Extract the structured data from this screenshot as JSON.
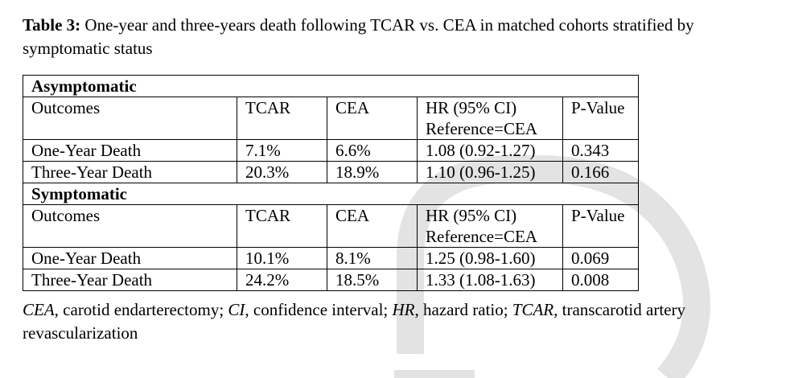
{
  "caption": {
    "label": "Table 3:",
    "text": " One-year and three-years death following TCAR vs. CEA in matched cohorts stratified by symptomatic status"
  },
  "table": {
    "sections": [
      {
        "title": "Asymptomatic",
        "header": [
          "Outcomes",
          "TCAR",
          "CEA",
          "HR (95% CI) Reference=CEA",
          "P-Value"
        ],
        "rows": [
          [
            "One-Year Death",
            "7.1%",
            "6.6%",
            "1.08 (0.92-1.27)",
            "0.343"
          ],
          [
            "Three-Year Death",
            "20.3%",
            "18.9%",
            "1.10 (0.96-1.25)",
            "0.166"
          ]
        ]
      },
      {
        "title": "Symptomatic",
        "header": [
          "Outcomes",
          "TCAR",
          "CEA",
          "HR (95% CI) Reference=CEA",
          "P-Value"
        ],
        "rows": [
          [
            "One-Year Death",
            "10.1%",
            "8.1%",
            "1.25 (0.98-1.60)",
            "0.069"
          ],
          [
            "Three-Year Death",
            "24.2%",
            "18.5%",
            "1.33 (1.08-1.63)",
            "0.008"
          ]
        ]
      }
    ]
  },
  "footnote": {
    "parts": [
      {
        "t": "CEA",
        "i": true
      },
      {
        "t": ", carotid endarterectomy; ",
        "i": false
      },
      {
        "t": "CI",
        "i": true
      },
      {
        "t": ", confidence interval; ",
        "i": false
      },
      {
        "t": "HR",
        "i": true
      },
      {
        "t": ", hazard ratio; ",
        "i": false
      },
      {
        "t": "TCAR",
        "i": true
      },
      {
        "t": ", transcarotid artery revascularization",
        "i": false
      }
    ]
  },
  "watermark": {
    "color": "#e3e3e3"
  }
}
